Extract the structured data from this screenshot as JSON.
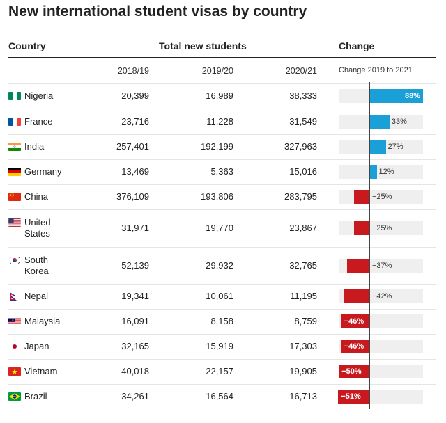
{
  "title": "New international student visas by country",
  "headers": {
    "country": "Country",
    "total": "Total new students",
    "change": "Change"
  },
  "subheaders": {
    "y1": "2018/19",
    "y2": "2019/20",
    "y3": "2020/21",
    "change": "Change 2019 to 2021"
  },
  "colors": {
    "positive": "#1a9fd6",
    "negative": "#c8191e",
    "track": "#efefef"
  },
  "chart_data": {
    "type": "table",
    "title": "New international student visas by country",
    "columns": [
      "Country",
      "2018/19",
      "2019/20",
      "2020/21",
      "Change 2019 to 2021"
    ],
    "rows": [
      {
        "country": "Nigeria",
        "flag": "nigeria-flag",
        "y2018": "20,399",
        "y2019": "16,989",
        "y2020": "38,333",
        "change": 88,
        "change_label": "88%"
      },
      {
        "country": "France",
        "flag": "france-flag",
        "y2018": "23,716",
        "y2019": "11,228",
        "y2020": "31,549",
        "change": 33,
        "change_label": "33%"
      },
      {
        "country": "India",
        "flag": "india-flag",
        "y2018": "257,401",
        "y2019": "192,199",
        "y2020": "327,963",
        "change": 27,
        "change_label": "27%"
      },
      {
        "country": "Germany",
        "flag": "germany-flag",
        "y2018": "13,469",
        "y2019": "5,363",
        "y2020": "15,016",
        "change": 12,
        "change_label": "12%"
      },
      {
        "country": "China",
        "flag": "china-flag",
        "y2018": "376,109",
        "y2019": "193,806",
        "y2020": "283,795",
        "change": -25,
        "change_label": "−25%"
      },
      {
        "country": "United States",
        "flag": "usa-flag",
        "y2018": "31,971",
        "y2019": "19,770",
        "y2020": "23,867",
        "change": -25,
        "change_label": "−25%"
      },
      {
        "country": "South Korea",
        "flag": "south-korea-flag",
        "y2018": "52,139",
        "y2019": "29,932",
        "y2020": "32,765",
        "change": -37,
        "change_label": "−37%"
      },
      {
        "country": "Nepal",
        "flag": "nepal-flag",
        "y2018": "19,341",
        "y2019": "10,061",
        "y2020": "11,195",
        "change": -42,
        "change_label": "−42%"
      },
      {
        "country": "Malaysia",
        "flag": "malaysia-flag",
        "y2018": "16,091",
        "y2019": "8,158",
        "y2020": "8,759",
        "change": -46,
        "change_label": "−46%"
      },
      {
        "country": "Japan",
        "flag": "japan-flag",
        "y2018": "32,165",
        "y2019": "15,919",
        "y2020": "17,303",
        "change": -46,
        "change_label": "−46%"
      },
      {
        "country": "Vietnam",
        "flag": "vietnam-flag",
        "y2018": "40,018",
        "y2019": "22,157",
        "y2020": "19,905",
        "change": -50,
        "change_label": "−50%"
      },
      {
        "country": "Brazil",
        "flag": "brazil-flag",
        "y2018": "34,261",
        "y2019": "16,564",
        "y2020": "16,713",
        "change": -51,
        "change_label": "−51%"
      }
    ]
  }
}
